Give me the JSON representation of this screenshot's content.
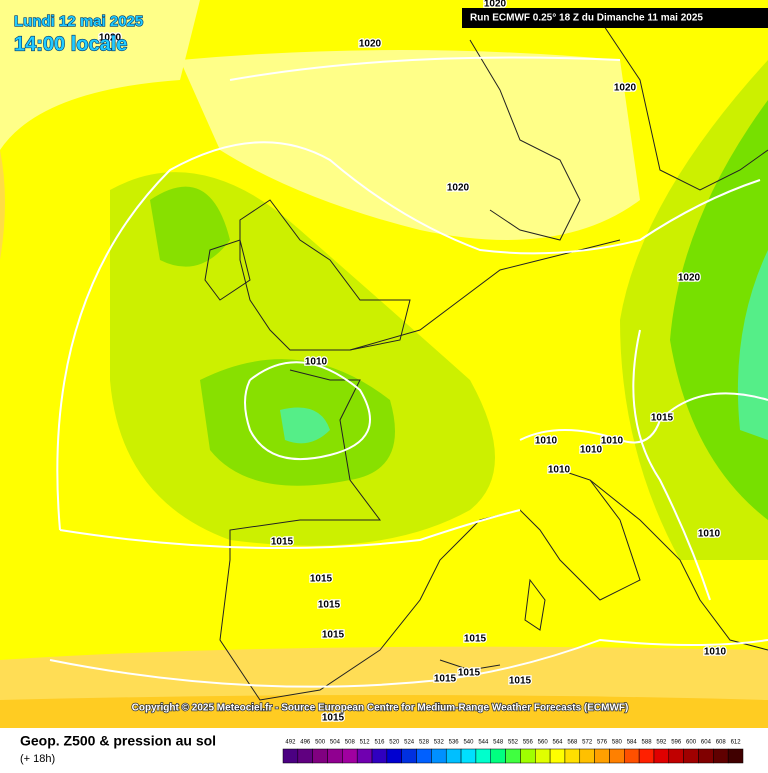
{
  "header": {
    "date": "Lundi 12 mai 2025",
    "time": "14:00 locale",
    "run": "Run ECMWF 0.25° 18 Z du Dimanche 11 mai 2025"
  },
  "copyright": "Copyright © 2025 Meteociel.fr - Source European Centre for Medium-Range Weather Forecasts (ECMWF)",
  "footer": {
    "title": "Geop. Z500 & pression au sol",
    "lead": "(+ 18h)"
  },
  "isobar_labels": [
    "1020",
    "1020",
    "1020",
    "1020",
    "1020",
    "1020",
    "1010",
    "1015",
    "1010",
    "1010",
    "1010",
    "1010",
    "1015",
    "1010",
    "1015",
    "1015",
    "1015",
    "1015",
    "1010",
    "1015",
    "1015",
    "1015",
    "1015"
  ],
  "colorbar": {
    "labels": [
      492,
      496,
      500,
      504,
      508,
      512,
      516,
      520,
      524,
      528,
      532,
      536,
      540,
      544,
      548,
      552,
      556,
      560,
      564,
      568,
      572,
      576,
      580,
      584,
      588,
      592,
      596,
      600,
      604,
      608,
      612
    ]
  }
}
